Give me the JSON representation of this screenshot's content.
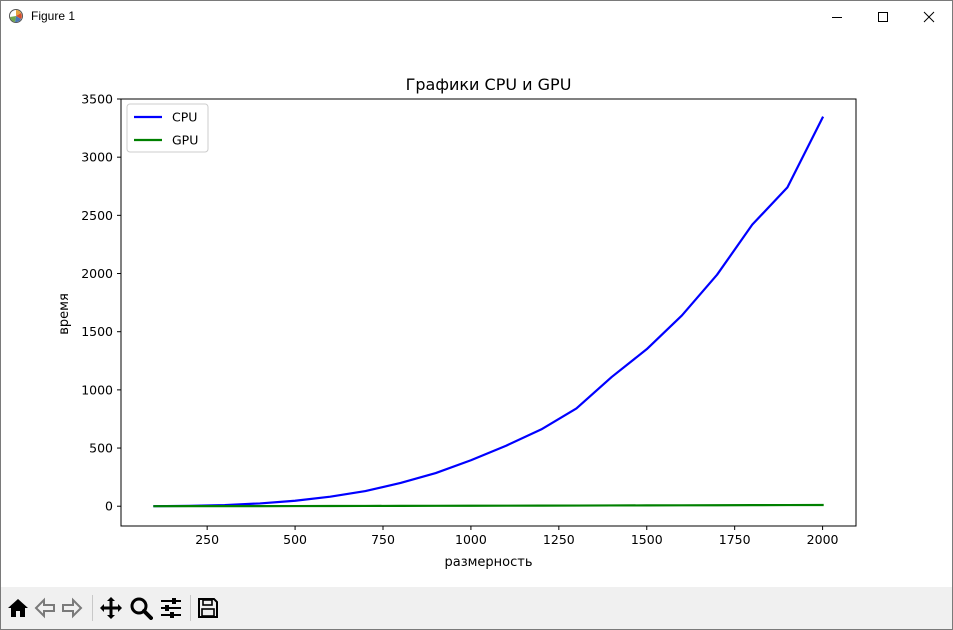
{
  "window": {
    "title": "Figure 1",
    "icons": {
      "app": "matplotlib-icon",
      "minimize": "minimize-icon",
      "maximize": "maximize-icon",
      "close": "close-icon"
    }
  },
  "toolbar": {
    "buttons": [
      {
        "name": "home",
        "icon": "home-icon"
      },
      {
        "name": "back",
        "icon": "back-arrow-icon"
      },
      {
        "name": "forward",
        "icon": "forward-arrow-icon"
      },
      {
        "name": "pan",
        "icon": "pan-icon"
      },
      {
        "name": "zoom",
        "icon": "zoom-icon"
      },
      {
        "name": "configure-subplots",
        "icon": "sliders-icon"
      },
      {
        "name": "save",
        "icon": "save-icon"
      }
    ]
  },
  "chart_data": {
    "type": "line",
    "title": "Графики CPU и GPU",
    "xlabel": "размерность",
    "ylabel": "время",
    "xlim": [
      5,
      2095
    ],
    "ylim": [
      -170,
      3500
    ],
    "xticks": [
      250,
      500,
      750,
      1000,
      1250,
      1500,
      1750,
      2000
    ],
    "yticks": [
      0,
      500,
      1000,
      1500,
      2000,
      2500,
      3000,
      3500
    ],
    "legend_position": "upper-left",
    "grid": false,
    "x": [
      100,
      200,
      300,
      400,
      500,
      600,
      700,
      800,
      900,
      1000,
      1100,
      1200,
      1300,
      1400,
      1500,
      1600,
      1700,
      1800,
      1900,
      2000
    ],
    "series": [
      {
        "name": "CPU",
        "color": "#0000ff",
        "values": [
          0.4,
          3,
          10,
          24,
          47,
          82,
          130,
          200,
          285,
          395,
          520,
          660,
          840,
          1110,
          1350,
          1640,
          1990,
          2420,
          2740,
          3340
        ]
      },
      {
        "name": "GPU",
        "color": "#008000",
        "values": [
          0.3,
          0.5,
          0.8,
          1.1,
          1.5,
          1.9,
          2.4,
          2.9,
          3.4,
          4.0,
          4.6,
          5.2,
          5.8,
          6.5,
          7.1,
          7.8,
          8.5,
          9.2,
          9.9,
          10.6
        ]
      }
    ]
  }
}
